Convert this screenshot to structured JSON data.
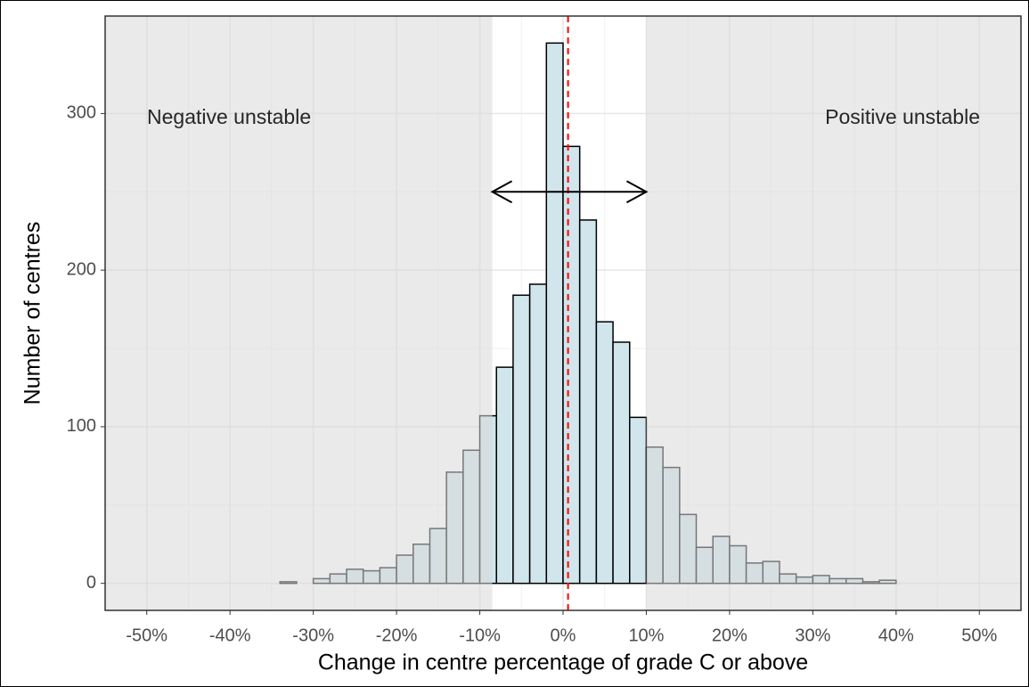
{
  "chart_data": {
    "type": "histogram",
    "x_label": "Change in centre percentage of grade C or above",
    "y_label": "Number of centres",
    "annotations": [
      "Negative unstable",
      "Positive unstable"
    ],
    "bins": [
      -50,
      -48,
      -46,
      -44,
      -42,
      -40,
      -38,
      -36,
      -34,
      -32,
      -30,
      -28,
      -26,
      -24,
      -22,
      -20,
      -18,
      -16,
      -14,
      -12,
      -10,
      -8,
      -6,
      -4,
      -2,
      0,
      2,
      4,
      6,
      8,
      10,
      12,
      14,
      16,
      18,
      20,
      22,
      24,
      26,
      28,
      30,
      32,
      34,
      36,
      38,
      40,
      42,
      44,
      46,
      48,
      50
    ],
    "values": [
      0,
      0,
      0,
      0,
      0,
      0,
      0,
      0,
      1,
      0,
      3,
      6,
      9,
      8,
      10,
      18,
      25,
      35,
      71,
      85,
      107,
      138,
      184,
      191,
      345,
      279,
      232,
      167,
      154,
      106,
      87,
      74,
      44,
      23,
      30,
      24,
      13,
      14,
      6,
      4,
      5,
      3,
      3,
      1,
      2,
      0,
      0,
      0,
      0,
      0
    ],
    "color": "#d1e5ec",
    "stable_range": [
      -8.5,
      10
    ],
    "arrow_y": 250,
    "vline": 0.6,
    "vline_color": "#ff0000",
    "xlim": [
      -55,
      55
    ],
    "ylim": [
      -17.25,
      362.25
    ],
    "xticks": [
      {
        "value": -50,
        "label": "-50%"
      },
      {
        "value": -40,
        "label": "-40%"
      },
      {
        "value": -30,
        "label": "-30%"
      },
      {
        "value": -20,
        "label": "-20%"
      },
      {
        "value": -10,
        "label": "-10%"
      },
      {
        "value": 0,
        "label": "0%"
      },
      {
        "value": 10,
        "label": "10%"
      },
      {
        "value": 20,
        "label": "20%"
      },
      {
        "value": 30,
        "label": "30%"
      },
      {
        "value": 40,
        "label": "40%"
      },
      {
        "value": 50,
        "label": "50%"
      }
    ],
    "yticks": [
      0,
      100,
      200,
      300
    ],
    "grid": true
  }
}
